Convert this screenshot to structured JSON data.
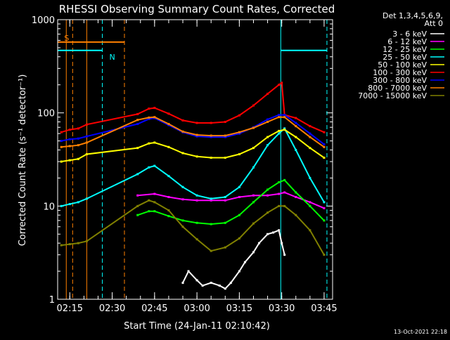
{
  "chart_data": {
    "type": "line",
    "title": "RHESSI Observing Summary Count Rates, Corrected",
    "xlabel": "Start Time (24-Jan-11 02:10:42)",
    "ylabel": "Corrected Count Rate (s⁻¹ detector⁻¹)",
    "xlim": [
      "02:10:42",
      "03:48:00"
    ],
    "ylim": [
      1,
      1000
    ],
    "yscale": "log",
    "xticks": [
      "02:15",
      "02:30",
      "02:45",
      "03:00",
      "03:15",
      "03:30",
      "03:45"
    ],
    "yticks": [
      "1",
      "10",
      "100",
      "1000"
    ],
    "legend_header": [
      "Det 1,3,4,5,6,9,",
      "Att 0"
    ],
    "legend_position": "right",
    "flags": {
      "saa_label": "S",
      "night_label": "N"
    },
    "footer": "13-Oct-2021 22:18",
    "series": [
      {
        "name": "3 - 6 keV",
        "color": "#ffffff",
        "points": [
          [
            "02:55",
            1.5
          ],
          [
            "02:57",
            2
          ],
          [
            "03:00",
            1.6
          ],
          [
            "03:02",
            1.4
          ],
          [
            "03:05",
            1.5
          ],
          [
            "03:08",
            1.4
          ],
          [
            "03:10",
            1.3
          ],
          [
            "03:12",
            1.5
          ],
          [
            "03:15",
            2
          ],
          [
            "03:17",
            2.5
          ],
          [
            "03:20",
            3.2
          ],
          [
            "03:22",
            4
          ],
          [
            "03:25",
            5
          ],
          [
            "03:27",
            5.2
          ],
          [
            "03:29",
            5.5
          ],
          [
            "03:30",
            4
          ],
          [
            "03:31",
            3
          ]
        ]
      },
      {
        "name": "6 - 12 keV",
        "color": "#ff00ff",
        "points": [
          [
            "02:39",
            13
          ],
          [
            "02:45",
            13.5
          ],
          [
            "02:50",
            12.5
          ],
          [
            "02:55",
            11.8
          ],
          [
            "03:00",
            11.5
          ],
          [
            "03:05",
            11.5
          ],
          [
            "03:10",
            11.5
          ],
          [
            "03:15",
            12.5
          ],
          [
            "03:20",
            13
          ],
          [
            "03:25",
            13
          ],
          [
            "03:29",
            13.5
          ],
          [
            "03:31",
            14
          ],
          [
            "03:35",
            12.5
          ],
          [
            "03:40",
            11
          ],
          [
            "03:45",
            9.5
          ]
        ]
      },
      {
        "name": "12 - 25 keV",
        "color": "#00ff00",
        "points": [
          [
            "02:39",
            8
          ],
          [
            "02:43",
            8.8
          ],
          [
            "02:45",
            8.8
          ],
          [
            "02:50",
            7.8
          ],
          [
            "02:55",
            7
          ],
          [
            "03:00",
            6.6
          ],
          [
            "03:05",
            6.4
          ],
          [
            "03:10",
            6.6
          ],
          [
            "03:15",
            8
          ],
          [
            "03:20",
            11
          ],
          [
            "03:25",
            15
          ],
          [
            "03:29",
            18
          ],
          [
            "03:31",
            19
          ],
          [
            "03:35",
            14
          ],
          [
            "03:40",
            10
          ],
          [
            "03:45",
            7
          ]
        ]
      },
      {
        "name": "25 - 50 keV",
        "color": "#00ffff",
        "points": [
          [
            "02:12",
            10
          ],
          [
            "02:15",
            10.5
          ],
          [
            "02:18",
            11
          ],
          [
            "02:21",
            12
          ],
          [
            "02:39",
            22
          ],
          [
            "02:43",
            26
          ],
          [
            "02:45",
            27
          ],
          [
            "02:50",
            21
          ],
          [
            "02:55",
            16
          ],
          [
            "03:00",
            13
          ],
          [
            "03:05",
            12
          ],
          [
            "03:10",
            12.5
          ],
          [
            "03:15",
            16
          ],
          [
            "03:20",
            26
          ],
          [
            "03:25",
            45
          ],
          [
            "03:29",
            60
          ],
          [
            "03:31",
            68
          ],
          [
            "03:35",
            40
          ],
          [
            "03:40",
            20
          ],
          [
            "03:45",
            11
          ]
        ]
      },
      {
        "name": "50 - 100 keV",
        "color": "#ffff00",
        "points": [
          [
            "02:12",
            30
          ],
          [
            "02:15",
            31
          ],
          [
            "02:18",
            32
          ],
          [
            "02:21",
            36
          ],
          [
            "02:39",
            42
          ],
          [
            "02:43",
            47
          ],
          [
            "02:45",
            48
          ],
          [
            "02:50",
            43
          ],
          [
            "02:55",
            37
          ],
          [
            "03:00",
            34
          ],
          [
            "03:05",
            33
          ],
          [
            "03:10",
            33
          ],
          [
            "03:15",
            36
          ],
          [
            "03:20",
            42
          ],
          [
            "03:25",
            55
          ],
          [
            "03:29",
            64
          ],
          [
            "03:31",
            66
          ],
          [
            "03:35",
            55
          ],
          [
            "03:40",
            42
          ],
          [
            "03:45",
            33
          ]
        ]
      },
      {
        "name": "100 - 300 keV",
        "color": "#ff0000",
        "points": [
          [
            "02:12",
            62
          ],
          [
            "02:15",
            66
          ],
          [
            "02:18",
            68
          ],
          [
            "02:21",
            75
          ],
          [
            "02:39",
            97
          ],
          [
            "02:43",
            111
          ],
          [
            "02:45",
            113
          ],
          [
            "02:50",
            98
          ],
          [
            "02:55",
            83
          ],
          [
            "03:00",
            78
          ],
          [
            "03:05",
            78
          ],
          [
            "03:10",
            80
          ],
          [
            "03:15",
            94
          ],
          [
            "03:20",
            120
          ],
          [
            "03:25",
            160
          ],
          [
            "03:29",
            200
          ],
          [
            "03:30",
            210
          ],
          [
            "03:31",
            95
          ],
          [
            "03:35",
            88
          ],
          [
            "03:40",
            72
          ],
          [
            "03:45",
            62
          ]
        ]
      },
      {
        "name": "300 - 800 keV",
        "color": "#0000ff",
        "points": [
          [
            "02:12",
            50
          ],
          [
            "02:15",
            52
          ],
          [
            "02:18",
            53
          ],
          [
            "02:21",
            56
          ],
          [
            "02:39",
            76
          ],
          [
            "02:43",
            86
          ],
          [
            "02:45",
            88
          ],
          [
            "02:50",
            74
          ],
          [
            "02:55",
            62
          ],
          [
            "03:00",
            56
          ],
          [
            "03:05",
            55
          ],
          [
            "03:10",
            55
          ],
          [
            "03:15",
            60
          ],
          [
            "03:20",
            70
          ],
          [
            "03:25",
            85
          ],
          [
            "03:29",
            95
          ],
          [
            "03:31",
            95
          ],
          [
            "03:35",
            78
          ],
          [
            "03:40",
            60
          ],
          [
            "03:45",
            46
          ]
        ]
      },
      {
        "name": "800 - 7000 keV",
        "color": "#ff8000",
        "points": [
          [
            "02:12",
            43
          ],
          [
            "02:15",
            44
          ],
          [
            "02:18",
            45
          ],
          [
            "02:21",
            48
          ],
          [
            "02:39",
            84
          ],
          [
            "02:43",
            89
          ],
          [
            "02:45",
            90
          ],
          [
            "02:50",
            76
          ],
          [
            "02:55",
            63
          ],
          [
            "03:00",
            58
          ],
          [
            "03:05",
            57
          ],
          [
            "03:10",
            57
          ],
          [
            "03:15",
            62
          ],
          [
            "03:20",
            69
          ],
          [
            "03:25",
            80
          ],
          [
            "03:29",
            90
          ],
          [
            "03:31",
            90
          ],
          [
            "03:35",
            72
          ],
          [
            "03:40",
            55
          ],
          [
            "03:45",
            43
          ]
        ]
      },
      {
        "name": "7000 - 15000 keV",
        "color": "#808000",
        "points": [
          [
            "02:12",
            3.8
          ],
          [
            "02:15",
            3.9
          ],
          [
            "02:18",
            4
          ],
          [
            "02:21",
            4.2
          ],
          [
            "02:39",
            10
          ],
          [
            "02:43",
            11.5
          ],
          [
            "02:45",
            11
          ],
          [
            "02:50",
            9
          ],
          [
            "02:55",
            6
          ],
          [
            "03:00",
            4.4
          ],
          [
            "03:05",
            3.3
          ],
          [
            "03:10",
            3.6
          ],
          [
            "03:15",
            4.5
          ],
          [
            "03:20",
            6.5
          ],
          [
            "03:25",
            8.5
          ],
          [
            "03:29",
            10
          ],
          [
            "03:31",
            10
          ],
          [
            "03:35",
            8
          ],
          [
            "03:40",
            5.5
          ],
          [
            "03:45",
            3
          ]
        ]
      }
    ],
    "markers": [
      {
        "kind": "saa-start",
        "time": "02:13:45",
        "color": "#ff8000",
        "style": "solid"
      },
      {
        "kind": "saa-end",
        "time": "02:16:00",
        "color": "#ff8000",
        "style": "dashed"
      },
      {
        "kind": "saa-gap",
        "time": "02:21:00",
        "color": "#ff8000",
        "style": "solid"
      },
      {
        "kind": "night-start",
        "time": "02:26:30",
        "color": "#00ffff",
        "style": "dashed"
      },
      {
        "kind": "saa-end",
        "time": "02:34:20",
        "color": "#ff8000",
        "style": "dashed"
      },
      {
        "kind": "night-end",
        "time": "03:29:40",
        "color": "#00ffff",
        "style": "solid"
      },
      {
        "kind": "night-start",
        "time": "03:46:00",
        "color": "#00ffff",
        "style": "dashed"
      }
    ],
    "flag_bars": [
      {
        "label": "S",
        "color": "#ff8000",
        "level": 0.92,
        "start": "02:10:42",
        "end": "02:34:20"
      },
      {
        "label": "N",
        "color": "#00ffff",
        "level": 0.89,
        "start": "02:10:42",
        "end": "02:26:30"
      },
      {
        "label": "N",
        "color": "#00ffff",
        "level": 0.89,
        "start": "03:29:40",
        "end": "03:46:00"
      }
    ]
  }
}
